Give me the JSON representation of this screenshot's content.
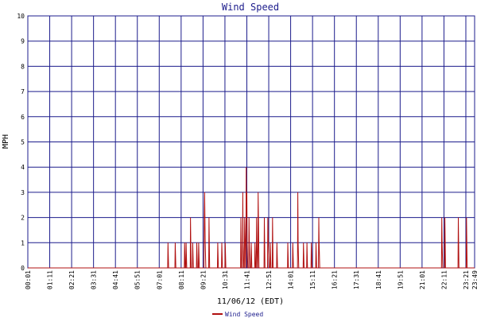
{
  "chart_data": {
    "type": "line",
    "title": "Wind Speed",
    "xlabel": "11/06/12 (EDT)",
    "ylabel": "MPH",
    "ylim": [
      0,
      10
    ],
    "yticks": [
      "0",
      "1",
      "2",
      "3",
      "4",
      "5",
      "6",
      "7",
      "8",
      "9",
      "10"
    ],
    "xlim": [
      "00:01",
      "23:49"
    ],
    "xticks": [
      "00:01",
      "01:11",
      "02:21",
      "03:31",
      "04:41",
      "05:51",
      "07:01",
      "08:11",
      "09:21",
      "10:31",
      "11:41",
      "12:51",
      "14:01",
      "15:11",
      "16:21",
      "17:31",
      "18:41",
      "19:51",
      "21:01",
      "22:11",
      "23:21",
      "23:49"
    ],
    "grid": true,
    "legend": "bottom-center",
    "series": [
      {
        "name": "Wind Speed",
        "color": "#b01010",
        "points": [
          [
            "00:01",
            0
          ],
          [
            "07:28",
            0
          ],
          [
            "07:29",
            1
          ],
          [
            "07:31",
            0
          ],
          [
            "07:51",
            0
          ],
          [
            "07:52",
            1
          ],
          [
            "07:54",
            0
          ],
          [
            "08:21",
            0
          ],
          [
            "08:22",
            1
          ],
          [
            "08:24",
            0
          ],
          [
            "08:26",
            0
          ],
          [
            "08:27",
            1
          ],
          [
            "08:29",
            0
          ],
          [
            "08:40",
            0
          ],
          [
            "08:41",
            2
          ],
          [
            "08:43",
            0
          ],
          [
            "08:47",
            0
          ],
          [
            "08:48",
            1
          ],
          [
            "08:50",
            0
          ],
          [
            "09:00",
            0
          ],
          [
            "09:01",
            1
          ],
          [
            "09:03",
            0
          ],
          [
            "09:06",
            0
          ],
          [
            "09:07",
            1
          ],
          [
            "09:09",
            0
          ],
          [
            "09:24",
            0
          ],
          [
            "09:25",
            2
          ],
          [
            "09:26",
            3
          ],
          [
            "09:28",
            1
          ],
          [
            "09:30",
            0
          ],
          [
            "09:39",
            0
          ],
          [
            "09:40",
            2
          ],
          [
            "09:42",
            0
          ],
          [
            "10:07",
            0
          ],
          [
            "10:08",
            1
          ],
          [
            "10:10",
            0
          ],
          [
            "10:20",
            0
          ],
          [
            "10:21",
            1
          ],
          [
            "10:23",
            0
          ],
          [
            "10:31",
            0
          ],
          [
            "10:32",
            1
          ],
          [
            "10:34",
            0
          ],
          [
            "11:21",
            0
          ],
          [
            "11:22",
            2
          ],
          [
            "11:24",
            0
          ],
          [
            "11:27",
            0
          ],
          [
            "11:28",
            3
          ],
          [
            "11:29",
            1
          ],
          [
            "11:31",
            0
          ],
          [
            "11:33",
            0
          ],
          [
            "11:34",
            2
          ],
          [
            "11:36",
            1
          ],
          [
            "11:37",
            0
          ],
          [
            "11:38",
            0
          ],
          [
            "11:39",
            4
          ],
          [
            "11:40",
            2
          ],
          [
            "11:41",
            3
          ],
          [
            "11:42",
            1
          ],
          [
            "11:44",
            0
          ],
          [
            "11:47",
            0
          ],
          [
            "11:48",
            2
          ],
          [
            "11:49",
            1
          ],
          [
            "11:51",
            0
          ],
          [
            "11:54",
            0
          ],
          [
            "11:55",
            1
          ],
          [
            "11:57",
            0
          ],
          [
            "12:06",
            0
          ],
          [
            "12:07",
            1
          ],
          [
            "12:09",
            0
          ],
          [
            "12:11",
            0
          ],
          [
            "12:12",
            2
          ],
          [
            "12:13",
            1
          ],
          [
            "12:15",
            0
          ],
          [
            "12:16",
            0
          ],
          [
            "12:17",
            3
          ],
          [
            "12:18",
            2
          ],
          [
            "12:20",
            0
          ],
          [
            "12:36",
            0
          ],
          [
            "12:37",
            2
          ],
          [
            "12:39",
            0
          ],
          [
            "12:47",
            0
          ],
          [
            "12:48",
            2
          ],
          [
            "12:50",
            1
          ],
          [
            "12:52",
            0
          ],
          [
            "12:55",
            0
          ],
          [
            "12:56",
            1
          ],
          [
            "12:58",
            0
          ],
          [
            "13:02",
            0
          ],
          [
            "13:03",
            2
          ],
          [
            "13:05",
            0
          ],
          [
            "13:16",
            0
          ],
          [
            "13:17",
            1
          ],
          [
            "13:19",
            0
          ],
          [
            "13:51",
            0
          ],
          [
            "13:52",
            1
          ],
          [
            "13:54",
            0
          ],
          [
            "14:07",
            0
          ],
          [
            "14:08",
            1
          ],
          [
            "14:10",
            0
          ],
          [
            "14:23",
            0
          ],
          [
            "14:24",
            3
          ],
          [
            "14:25",
            1
          ],
          [
            "14:27",
            0
          ],
          [
            "14:41",
            0
          ],
          [
            "14:42",
            1
          ],
          [
            "14:44",
            0
          ],
          [
            "14:52",
            0
          ],
          [
            "14:53",
            1
          ],
          [
            "14:55",
            0
          ],
          [
            "15:06",
            0
          ],
          [
            "15:07",
            1
          ],
          [
            "15:09",
            0
          ],
          [
            "15:21",
            0
          ],
          [
            "15:22",
            1
          ],
          [
            "15:24",
            0
          ],
          [
            "15:30",
            0
          ],
          [
            "15:31",
            2
          ],
          [
            "15:32",
            1
          ],
          [
            "15:34",
            0
          ],
          [
            "22:03",
            0
          ],
          [
            "22:04",
            2
          ],
          [
            "22:05",
            1
          ],
          [
            "22:07",
            0
          ],
          [
            "22:13",
            0
          ],
          [
            "22:14",
            2
          ],
          [
            "22:16",
            0
          ],
          [
            "22:56",
            0
          ],
          [
            "22:57",
            2
          ],
          [
            "22:59",
            0
          ],
          [
            "23:22",
            0
          ],
          [
            "23:23",
            2
          ],
          [
            "23:25",
            0
          ],
          [
            "23:49",
            0
          ]
        ]
      }
    ]
  },
  "colors": {
    "grid": "#1c1c8c",
    "series": "#b01010",
    "text": "#1c1c8c",
    "background": "#ffffff"
  }
}
